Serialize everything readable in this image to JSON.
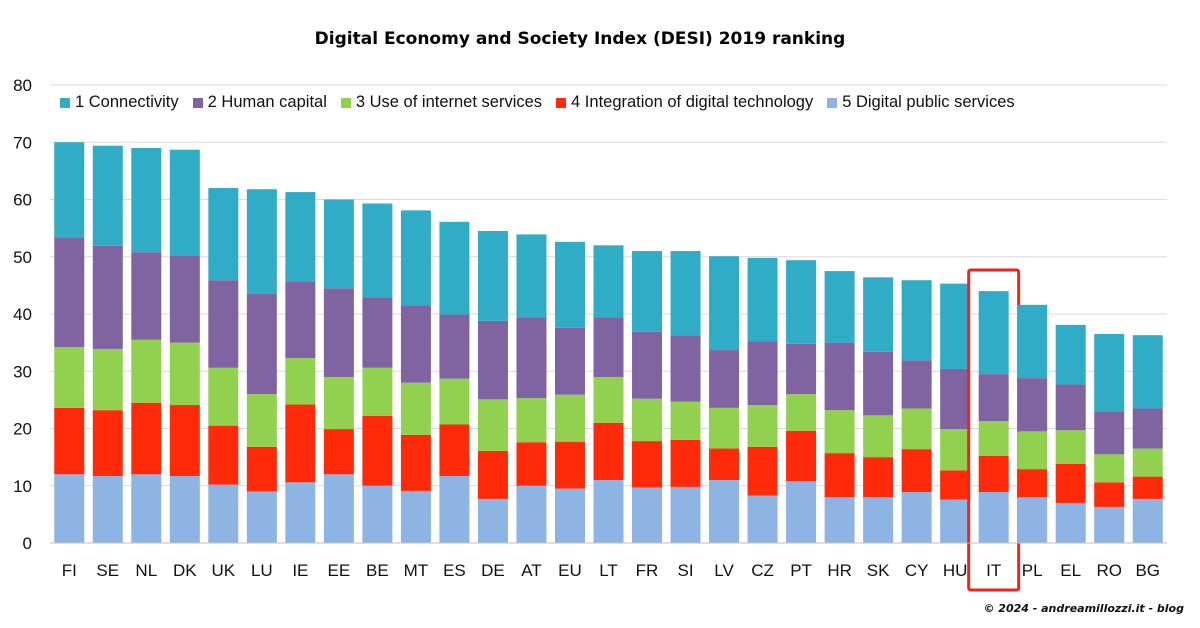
{
  "chart_data": {
    "type": "bar",
    "stacked": true,
    "title": "Digital Economy and Society Index (DESI) 2019 ranking",
    "xlabel": "",
    "ylabel": "",
    "ylim": [
      0,
      80
    ],
    "yticks": [
      0,
      10,
      20,
      30,
      40,
      50,
      60,
      70,
      80
    ],
    "grid": true,
    "legend_position": "top",
    "categories": [
      "FI",
      "SE",
      "NL",
      "DK",
      "UK",
      "LU",
      "IE",
      "EE",
      "BE",
      "MT",
      "ES",
      "DE",
      "AT",
      "EU",
      "LT",
      "FR",
      "SI",
      "LV",
      "CZ",
      "PT",
      "HR",
      "SK",
      "CY",
      "HU",
      "IT",
      "PL",
      "EL",
      "RO",
      "BG"
    ],
    "highlight": "IT",
    "series": [
      {
        "name": "5 Digital public services",
        "color": "#8DB4E2",
        "values": [
          12,
          11.7,
          12,
          11.7,
          10.2,
          9,
          10.6,
          12,
          10,
          9.1,
          11.7,
          7.7,
          10,
          9.5,
          11,
          9.7,
          9.8,
          11,
          8.3,
          10.8,
          8,
          8,
          8.9,
          7.6,
          8.9,
          8,
          7,
          6.3,
          7.7
        ]
      },
      {
        "name": "4 Integration of digital technology",
        "color": "#FF2A0A",
        "values": [
          11.6,
          11.5,
          12.5,
          12.4,
          10.3,
          7.8,
          13.6,
          7.9,
          12.2,
          9.8,
          9,
          8.4,
          7.6,
          8.2,
          10,
          8.1,
          8.2,
          5.5,
          8.5,
          8.8,
          7.7,
          7,
          7.5,
          5.1,
          6.3,
          4.9,
          6.8,
          4.3,
          3.9
        ]
      },
      {
        "name": "3 Use of internet services",
        "color": "#92D050",
        "values": [
          10.6,
          10.7,
          11,
          10.9,
          10.1,
          9.2,
          8.1,
          9.1,
          8.4,
          9.1,
          8,
          9,
          7.7,
          8.2,
          8,
          7.4,
          6.7,
          7.1,
          7.3,
          6.4,
          7.5,
          7.3,
          7.1,
          7.2,
          6.1,
          6.6,
          5.9,
          4.9,
          4.9
        ]
      },
      {
        "name": "2 Human capital",
        "color": "#8064A2",
        "values": [
          19.2,
          18,
          15.3,
          15.2,
          15.3,
          17.5,
          13.4,
          15.5,
          12.3,
          13.5,
          11.2,
          13.7,
          14.1,
          11.7,
          10.4,
          11.7,
          11.6,
          10.1,
          11.1,
          8.8,
          11.8,
          11.1,
          8.4,
          10.5,
          8.2,
          9.3,
          8,
          7.5,
          7
        ]
      },
      {
        "name": "1 Connectivity",
        "color": "#31ACC6",
        "values": [
          16.6,
          17.5,
          18.2,
          18.5,
          16.1,
          18.3,
          15.6,
          15.5,
          16.4,
          16.6,
          16.2,
          15.7,
          14.5,
          15,
          12.6,
          14.1,
          14.7,
          16.4,
          14.6,
          14.6,
          12.5,
          13,
          14,
          14.9,
          14.5,
          12.8,
          10.4,
          13.5,
          12.8
        ]
      }
    ],
    "legend_order": [
      "1 Connectivity",
      "2 Human capital",
      "3 Use of internet services",
      "4 Integration of digital technology",
      "5 Digital public services"
    ]
  },
  "credit": "© 2024 - andreamillozzi.it - blog"
}
